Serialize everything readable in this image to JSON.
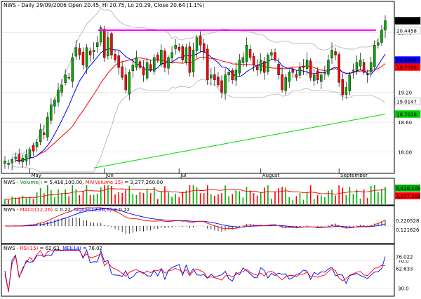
{
  "chart_data": [
    {
      "type": "candlestick",
      "header": "NWS - Daily 29/09/2006 Open 20.45, Hi 20.75, Lo 20.29, Close 20.64 (1.1%)",
      "title_text": "Daily 29/09/2006 Open 20.45, Hi 20.75, Lo 20.29, Close 20.64 (1.1%)",
      "ticker": "NWS",
      "last": {
        "open": 20.45,
        "high": 20.75,
        "low": 20.29,
        "close": 20.64,
        "change": "(1.1%)"
      },
      "x_labels": [
        "May",
        "Jun",
        "Jul",
        "August",
        "September"
      ],
      "ylim": [
        17.6,
        21.0
      ],
      "y_ticks": [
        "20.40",
        "19.80",
        "19.20",
        "18.60",
        "18.00"
      ],
      "price_tags": [
        {
          "text": "20.64",
          "color": "#000000",
          "text_color": "#ffffff"
        },
        {
          "text": "20.4458",
          "color": "#ffffff",
          "text_color": "#000000"
        },
        {
          "text": "19.8495",
          "color": "#0000ff",
          "text_color": "#ffffff"
        },
        {
          "text": "19.7090",
          "color": "#ff0000",
          "text_color": "#ffffff"
        },
        {
          "text": "19.0147",
          "color": "#ffffff",
          "text_color": "#000000"
        },
        {
          "text": "18.7638",
          "color": "#00cc00",
          "text_color": "#ffffff"
        }
      ],
      "resistance_level": 20.45,
      "colors": {
        "up": "#00aa00",
        "down": "#ff0000",
        "ma_short": "#0000ff",
        "ma_mid": "#ff0000",
        "ma_long": "#00dd00",
        "band": "#b0b0b0",
        "resistance": "#ff00ff"
      },
      "closes": [
        17.82,
        17.78,
        17.85,
        17.9,
        17.8,
        17.88,
        17.95,
        18.05,
        18.02,
        18.2,
        18.45,
        18.35,
        18.7,
        18.95,
        19.05,
        19.25,
        19.35,
        19.55,
        19.5,
        19.9,
        20.1,
        19.95,
        19.75,
        20.1,
        19.95,
        20.05,
        20.2,
        20.5,
        19.9,
        20.3,
        19.95,
        19.85,
        19.7,
        19.5,
        19.25,
        19.6,
        19.75,
        19.9,
        19.7,
        19.55,
        19.8,
        19.65,
        19.9,
        19.85,
        20.05,
        19.7,
        19.9,
        20.0,
        20.15,
        20.05,
        19.85,
        20.1,
        19.6,
        20.05,
        20.3,
        20.15,
        20.0,
        19.45,
        19.55,
        19.45,
        19.35,
        19.2,
        19.55,
        19.6,
        19.45,
        19.65,
        19.85,
        19.9,
        20.15,
        19.9,
        19.75,
        19.65,
        19.85,
        19.6,
        19.95,
        20.0,
        19.85,
        19.55,
        19.25,
        19.5,
        19.6,
        19.6,
        19.5,
        19.7,
        19.7,
        19.85,
        19.5,
        19.55,
        19.45,
        19.55,
        19.6,
        19.85,
        20.05,
        19.95,
        19.4,
        19.15,
        19.3,
        19.55,
        19.65,
        19.8,
        19.85,
        19.6,
        19.55,
        19.8,
        20.15,
        20.2,
        20.45,
        20.64
      ]
    },
    {
      "type": "bar",
      "legend": [
        {
          "text": "NWS - ",
          "color": "#000000"
        },
        {
          "text": "Volume()",
          "color": "#008000"
        },
        {
          "text": " = 5,416,100.00, ",
          "color": "#000000"
        },
        {
          "text": "MA(Volume,15)",
          "color": "#ff0000"
        },
        {
          "text": " = 3,277,260.00",
          "color": "#000000"
        }
      ],
      "series": [
        {
          "name": "Volume()",
          "last": 5416100
        },
        {
          "name": "MA(Volume,15)",
          "last": 3277260
        }
      ],
      "tags": [
        {
          "text": "5,416,100",
          "color": "#00aa00"
        },
        {
          "text": "3,277,260",
          "color": "#ff0000"
        }
      ]
    },
    {
      "type": "line",
      "legend": [
        {
          "text": "NWS - ",
          "color": "#000000"
        },
        {
          "text": "MACD(12,26)",
          "color": "#ff0000"
        },
        {
          "text": " = 0.22, ",
          "color": "#000000"
        },
        {
          "text": "Signal(12,26,9)",
          "color": "#0000ff"
        },
        {
          "text": " = 0.12",
          "color": "#000000"
        }
      ],
      "series": [
        {
          "name": "MACD(12,26)",
          "last": 0.22
        },
        {
          "name": "Signal(12,26,9)",
          "last": 0.12
        }
      ],
      "tags": [
        {
          "text": "0.220528",
          "color": "#ff0000"
        },
        {
          "text": "0.121626",
          "color": "#0000ff"
        }
      ]
    },
    {
      "type": "line",
      "legend": [
        {
          "text": "NWS - ",
          "color": "#000000"
        },
        {
          "text": "RSI(15)",
          "color": "#ff0000"
        },
        {
          "text": " = 62.63, ",
          "color": "#000000"
        },
        {
          "text": "MFI(14)",
          "color": "#0000ff"
        },
        {
          "text": " = 76.02",
          "color": "#000000"
        }
      ],
      "series": [
        {
          "name": "RSI(15)",
          "last": 62.63
        },
        {
          "name": "MFI(14)",
          "last": 76.02
        }
      ],
      "levels": [
        "70.0",
        "30.0"
      ],
      "tags": [
        {
          "text": "76.022",
          "color": "#0000ff"
        },
        {
          "text": "62.633",
          "color": "#ff0000"
        }
      ]
    }
  ]
}
